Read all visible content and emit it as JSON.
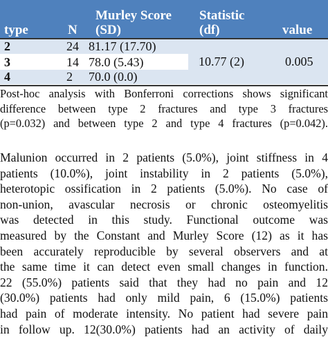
{
  "table": {
    "header": [
      [
        "type"
      ],
      [
        "N"
      ],
      [
        "Murley Score",
        "(SD)"
      ],
      [
        "Statistic",
        "(df)"
      ],
      [
        "value"
      ]
    ],
    "rows": [
      [
        "2",
        "24",
        "81.17 (17.70)"
      ],
      [
        "3",
        "14",
        "78.0 (5.43)"
      ],
      [
        "4",
        "2",
        "70.0 (0.0)"
      ]
    ],
    "statistic": "10.77 (2)",
    "p_value": "0.005"
  },
  "note": [
    "Post-hoc analysis with Bonferroni corrections shows significant",
    "difference between type 2 fractures and type 3 fractures",
    "(p=0.032) and between type 2 and type 4 fractures (p=0.042)."
  ],
  "paragraph": [
    "Malunion occurred in 2 patients (5.0%), joint stiffness in 4",
    "patients (10.0%), joint instability in 2 patients (5.0%),",
    "heterotopic ossification in 2 patients (5.0%). No case of",
    "non-union, avascular necrosis or chronic osteomyelitis",
    "was detected in this study. Functional outcome was",
    "measured by the Constant and Murley Score (12) as it has",
    "been accurately reproducible by several observers and at",
    "the same time it can detect even small changes in function.",
    "22 (55.0%) patients said that they had no pain and 12",
    "(30.0%) patients had only mild pain, 6 (15.0%) patients",
    "had pain of moderate intensity. No patient had severe pain",
    "in follow up. 12(30.0%) patients had an activity of daily"
  ]
}
